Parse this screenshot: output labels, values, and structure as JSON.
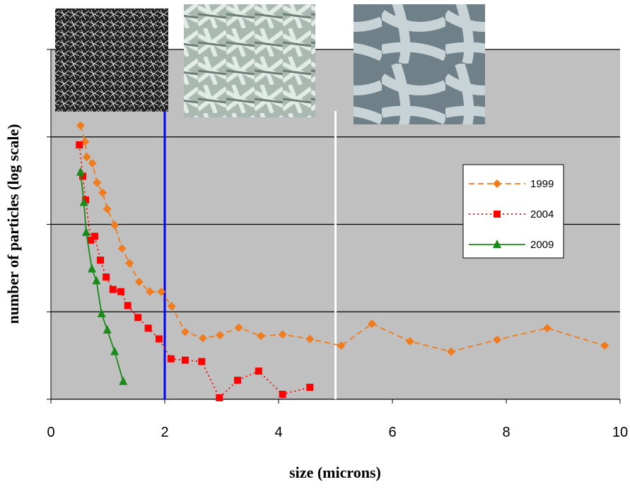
{
  "chart_data": {
    "type": "line",
    "x_label": "size (microns)",
    "y_label": "number of particles (log scale)",
    "xlim": [
      0,
      10
    ],
    "xticks": [
      0,
      2,
      4,
      6,
      8,
      10
    ],
    "ylim": [
      1,
      10000
    ],
    "yticks": [
      1,
      10,
      100,
      1000,
      10000
    ],
    "yscale": "log",
    "grid": true,
    "background": "#c0c0c0",
    "vlines": [
      {
        "x": 2,
        "color": "#0000ff"
      },
      {
        "x": 5,
        "color": "#ffffff"
      }
    ],
    "series": [
      {
        "name": "1999",
        "color": "#f07c1e",
        "marker": "diamond",
        "dash": "8,5",
        "x": [
          0.52,
          0.6,
          0.63,
          0.73,
          0.81,
          0.91,
          0.99,
          1.12,
          1.25,
          1.38,
          1.55,
          1.74,
          1.94,
          2.12,
          2.36,
          2.67,
          2.97,
          3.3,
          3.69,
          4.07,
          4.55,
          5.1,
          5.64,
          6.31,
          7.03,
          7.84,
          8.72,
          9.73
        ],
        "values": [
          1350,
          880,
          590,
          500,
          300,
          230,
          150,
          98,
          53,
          36,
          22,
          17,
          17,
          11.6,
          5.9,
          5.0,
          5.4,
          6.6,
          5.3,
          5.5,
          4.9,
          4.1,
          7.3,
          4.6,
          3.5,
          4.8,
          6.5,
          4.1
        ]
      },
      {
        "name": "2004",
        "color": "#ff0000",
        "marker": "square",
        "dash": "2,4",
        "x": [
          0.5,
          0.56,
          0.61,
          0.7,
          0.77,
          0.87,
          0.97,
          1.09,
          1.23,
          1.35,
          1.53,
          1.71,
          1.9,
          2.11,
          2.36,
          2.65,
          2.96,
          3.28,
          3.65,
          4.07,
          4.55
        ],
        "values": [
          810,
          355,
          190,
          66,
          73,
          39,
          25,
          18,
          17,
          11.8,
          8.6,
          6.5,
          4.9,
          2.9,
          2.8,
          2.7,
          1.04,
          1.65,
          2.1,
          1.14,
          1.37
        ]
      },
      {
        "name": "2009",
        "color": "#1a8a1a",
        "marker": "triangle",
        "dash": "",
        "x": [
          0.52,
          0.58,
          0.62,
          0.72,
          0.8,
          0.89,
          0.99,
          1.12,
          1.27
        ],
        "values": [
          395,
          178,
          81,
          31,
          22.6,
          9.5,
          6.2,
          3.5,
          1.6
        ]
      }
    ]
  }
}
